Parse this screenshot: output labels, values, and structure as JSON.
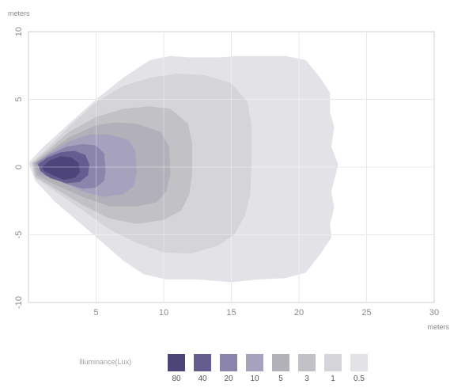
{
  "chart_data": {
    "type": "heatmap",
    "title": "",
    "xlabel": "meters",
    "ylabel": "meters",
    "xlim": [
      0,
      30
    ],
    "ylim": [
      -10,
      10
    ],
    "x_ticks": [
      "5",
      "10",
      "15",
      "20",
      "25",
      "30"
    ],
    "y_ticks": [
      "10",
      "5",
      "0",
      "-5",
      "-10"
    ],
    "grid": true,
    "legend": {
      "title": "Illuminance(Lux)",
      "placement": "bottom",
      "levels": [
        {
          "label": "80",
          "color": "#4d4479"
        },
        {
          "label": "40",
          "color": "#655c8f"
        },
        {
          "label": "20",
          "color": "#8c85ab"
        },
        {
          "label": "10",
          "color": "#a6a1bd"
        },
        {
          "label": "5",
          "color": "#b2b0b9"
        },
        {
          "label": "3",
          "color": "#c2c2c6"
        },
        {
          "label": "1",
          "color": "#d5d5d9"
        },
        {
          "label": "0.5",
          "color": "#e3e3e7"
        }
      ]
    },
    "contours": [
      {
        "level": "0.5",
        "points": [
          [
            0,
            0.3
          ],
          [
            1,
            1.4
          ],
          [
            3,
            3.2
          ],
          [
            5,
            5.0
          ],
          [
            7,
            6.6
          ],
          [
            9,
            7.9
          ],
          [
            10.5,
            8.2
          ],
          [
            12,
            8.1
          ],
          [
            14,
            8.1
          ],
          [
            15.5,
            8.2
          ],
          [
            17,
            8.2
          ],
          [
            19,
            8.2
          ],
          [
            20.5,
            7.9
          ],
          [
            21.5,
            6.7
          ],
          [
            22.3,
            5.5
          ],
          [
            22.3,
            4.0
          ],
          [
            22.6,
            3.0
          ],
          [
            22.4,
            1.5
          ],
          [
            22.9,
            0.2
          ],
          [
            22.4,
            -1.8
          ],
          [
            22.6,
            -3.0
          ],
          [
            22.3,
            -4.2
          ],
          [
            22.4,
            -5.2
          ],
          [
            21.6,
            -6.4
          ],
          [
            20.5,
            -7.8
          ],
          [
            19,
            -8.2
          ],
          [
            17,
            -8.3
          ],
          [
            15,
            -8.5
          ],
          [
            12.5,
            -8.3
          ],
          [
            10.2,
            -8.3
          ],
          [
            8.5,
            -7.9
          ],
          [
            7,
            -6.9
          ],
          [
            5.5,
            -5.6
          ],
          [
            4,
            -4.3
          ],
          [
            2,
            -2.6
          ],
          [
            0.5,
            -1.0
          ]
        ]
      },
      {
        "level": "1",
        "points": [
          [
            0.2,
            0.3
          ],
          [
            1.5,
            1.5
          ],
          [
            3,
            3.0
          ],
          [
            5,
            4.8
          ],
          [
            7,
            6.0
          ],
          [
            9,
            6.6
          ],
          [
            11,
            6.9
          ],
          [
            13,
            6.8
          ],
          [
            15,
            6.2
          ],
          [
            16.2,
            4.8
          ],
          [
            16.5,
            3.0
          ],
          [
            16.5,
            0.5
          ],
          [
            16.4,
            -2.0
          ],
          [
            16.0,
            -3.6
          ],
          [
            15.2,
            -5.0
          ],
          [
            14.0,
            -5.8
          ],
          [
            12,
            -6.4
          ],
          [
            10,
            -6.3
          ],
          [
            8,
            -5.6
          ],
          [
            6,
            -4.6
          ],
          [
            4,
            -3.2
          ],
          [
            2,
            -1.8
          ],
          [
            0.5,
            -0.8
          ]
        ]
      },
      {
        "level": "3",
        "points": [
          [
            0.3,
            0.3
          ],
          [
            1.5,
            1.3
          ],
          [
            3,
            2.6
          ],
          [
            5,
            3.7
          ],
          [
            7,
            4.3
          ],
          [
            9,
            4.5
          ],
          [
            10.5,
            4.3
          ],
          [
            11.8,
            3.2
          ],
          [
            12.1,
            1.8
          ],
          [
            12.1,
            -0.5
          ],
          [
            11.9,
            -2.0
          ],
          [
            11.3,
            -3.2
          ],
          [
            10.0,
            -3.9
          ],
          [
            8,
            -4.2
          ],
          [
            6,
            -3.8
          ],
          [
            4,
            -2.8
          ],
          [
            2,
            -1.6
          ],
          [
            0.5,
            -0.7
          ]
        ]
      },
      {
        "level": "5",
        "points": [
          [
            0.4,
            0.3
          ],
          [
            1.5,
            1.1
          ],
          [
            3,
            2.2
          ],
          [
            5,
            3.1
          ],
          [
            6.5,
            3.3
          ],
          [
            8,
            3.2
          ],
          [
            9.8,
            2.6
          ],
          [
            10.4,
            1.5
          ],
          [
            10.5,
            -0.5
          ],
          [
            10.2,
            -1.8
          ],
          [
            9.5,
            -2.6
          ],
          [
            8,
            -2.9
          ],
          [
            6,
            -2.9
          ],
          [
            4,
            -2.2
          ],
          [
            2,
            -1.3
          ],
          [
            0.6,
            -0.6
          ]
        ]
      },
      {
        "level": "10",
        "points": [
          [
            0.5,
            0.3
          ],
          [
            1.5,
            1.0
          ],
          [
            3,
            1.9
          ],
          [
            4.5,
            2.4
          ],
          [
            6,
            2.4
          ],
          [
            7.4,
            2.0
          ],
          [
            7.9,
            1.2
          ],
          [
            8.0,
            -0.4
          ],
          [
            7.8,
            -1.4
          ],
          [
            7.0,
            -2.0
          ],
          [
            5.5,
            -2.2
          ],
          [
            4,
            -1.8
          ],
          [
            2.5,
            -1.1
          ],
          [
            0.8,
            -0.5
          ]
        ]
      },
      {
        "level": "20",
        "points": [
          [
            0.6,
            0.3
          ],
          [
            1.5,
            0.9
          ],
          [
            2.8,
            1.5
          ],
          [
            4,
            1.7
          ],
          [
            5,
            1.6
          ],
          [
            5.6,
            1.0
          ],
          [
            5.7,
            -0.2
          ],
          [
            5.6,
            -1.0
          ],
          [
            5.0,
            -1.5
          ],
          [
            4,
            -1.6
          ],
          [
            2.7,
            -1.2
          ],
          [
            1.2,
            -0.6
          ]
        ]
      },
      {
        "level": "40",
        "points": [
          [
            0.7,
            0.2
          ],
          [
            1.4,
            0.7
          ],
          [
            2.4,
            1.1
          ],
          [
            3.4,
            1.2
          ],
          [
            4.2,
            0.9
          ],
          [
            4.5,
            0.2
          ],
          [
            4.4,
            -0.6
          ],
          [
            3.8,
            -1.1
          ],
          [
            2.8,
            -1.2
          ],
          [
            1.6,
            -0.8
          ],
          [
            0.9,
            -0.3
          ]
        ]
      },
      {
        "level": "80",
        "points": [
          [
            1.0,
            0.0
          ],
          [
            1.6,
            0.5
          ],
          [
            2.4,
            0.8
          ],
          [
            3.2,
            0.7
          ],
          [
            3.7,
            0.3
          ],
          [
            3.8,
            -0.4
          ],
          [
            3.4,
            -0.8
          ],
          [
            2.6,
            -0.95
          ],
          [
            1.8,
            -0.6
          ],
          [
            1.2,
            -0.3
          ]
        ]
      }
    ]
  }
}
